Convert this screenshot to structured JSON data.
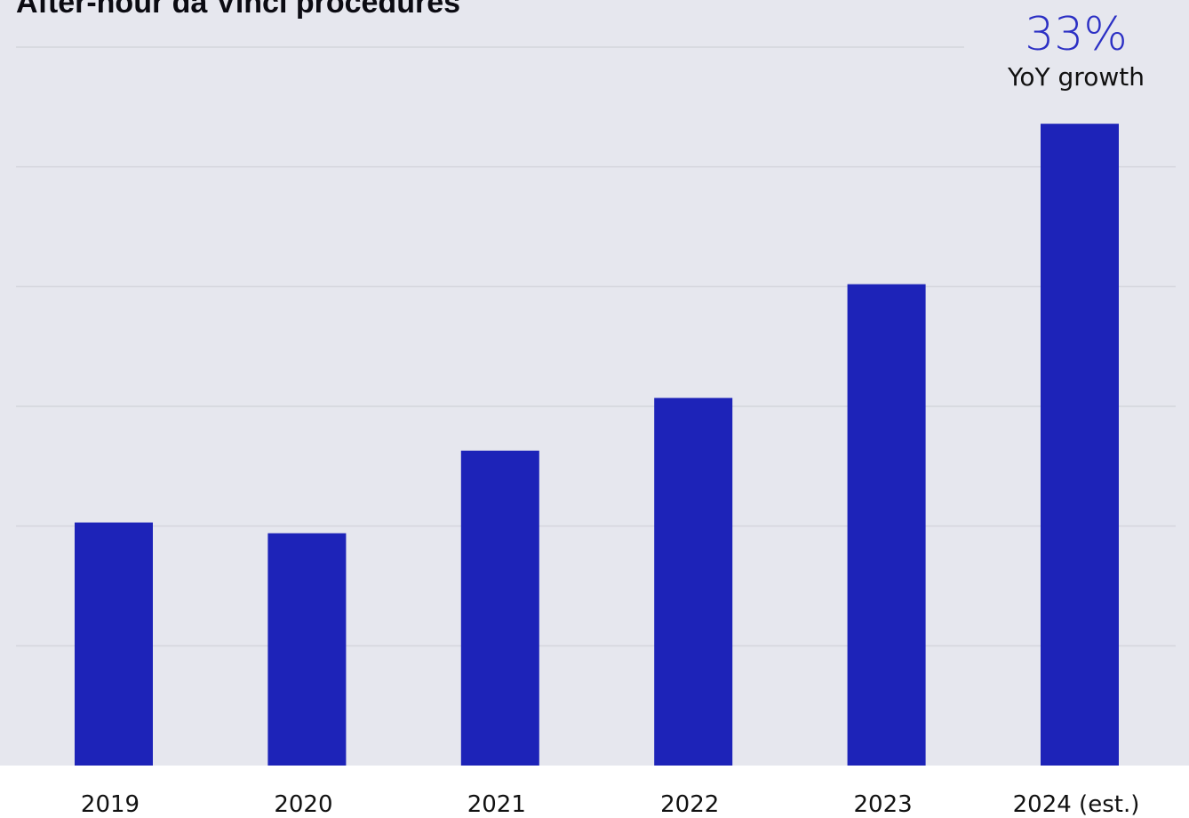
{
  "title": "After-hour da Vinci procedures",
  "colors": {
    "bar": "#1d23b8",
    "accent": "#2b2fc4",
    "plot_background": "#e6e7ee",
    "grid": "#d4d5dc"
  },
  "callout": {
    "value": "33%",
    "caption": "YoY growth"
  },
  "chart_data": {
    "type": "bar",
    "title": "After-hour da Vinci procedures",
    "xlabel": "",
    "ylabel": "",
    "categories": [
      "2019",
      "2020",
      "2021",
      "2022",
      "2023",
      "2024 (est.)"
    ],
    "values": [
      2.03,
      1.94,
      2.63,
      3.07,
      4.02,
      5.36
    ],
    "ylim": [
      0,
      6
    ],
    "grid": true,
    "y_tick_labels_shown": false,
    "legend": "none"
  }
}
